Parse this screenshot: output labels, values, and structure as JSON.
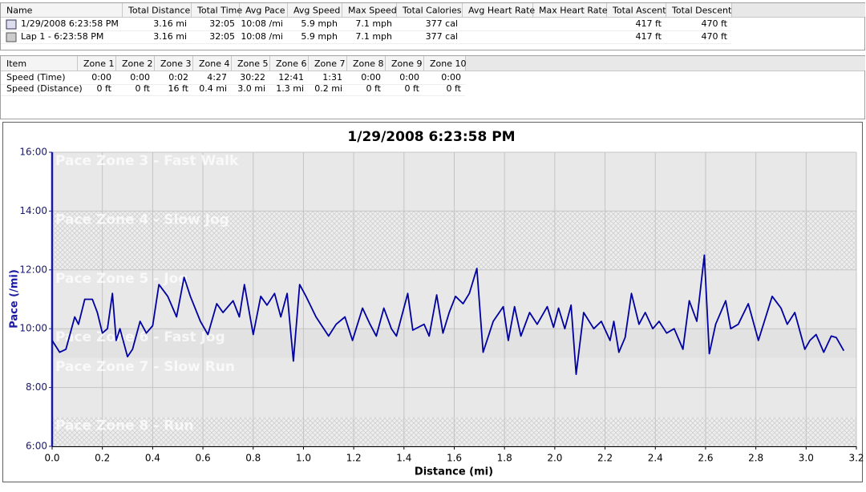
{
  "summary_table": {
    "columns": [
      "Name",
      "Total Distance",
      "Total Time",
      "Avg Pace",
      "Avg Speed",
      "Max Speed",
      "Total Calories",
      "Avg Heart Rate",
      "Max Heart Rate",
      "Total Ascent",
      "Total Descent"
    ],
    "rows": [
      [
        "1/29/2008 6:23:58 PM",
        "3.16 mi",
        "32:05",
        "10:08 /mi",
        "5.9 mph",
        "7.1 mph",
        "377 cal",
        "",
        "",
        "417 ft",
        "470 ft"
      ],
      [
        "Lap 1 - 6:23:58 PM",
        "3.16 mi",
        "32:05",
        "10:08 /mi",
        "5.9 mph",
        "7.1 mph",
        "377 cal",
        "",
        "",
        "417 ft",
        "470 ft"
      ]
    ]
  },
  "zone_table": {
    "columns": [
      "Item",
      "Zone 1",
      "Zone 2",
      "Zone 3",
      "Zone 4",
      "Zone 5",
      "Zone 6",
      "Zone 7",
      "Zone 8",
      "Zone 9",
      "Zone 10"
    ],
    "rows": [
      [
        "Speed (Time)",
        "0:00",
        "0:00",
        "0:02",
        "4:27",
        "30:22",
        "12:41",
        "1:31",
        "0:00",
        "0:00",
        "0:00"
      ],
      [
        "Speed (Distance)",
        "0 ft",
        "0 ft",
        "16 ft",
        "0.4 mi",
        "3.0 mi",
        "1.3 mi",
        "0.2 mi",
        "0 ft",
        "0 ft",
        "0 ft"
      ]
    ]
  },
  "chart_data": {
    "type": "line",
    "title": "1/29/2008 6:23:58 PM",
    "x_label": "Distance (mi)",
    "y_label": "Pace (/mi)",
    "xlim": [
      0,
      3.2
    ],
    "xticks": [
      {
        "value": 0,
        "label": "0.0"
      },
      0.2,
      0.4,
      0.6,
      0.8,
      {
        "value": 1,
        "label": "1.0"
      },
      1.2,
      1.4,
      1.6,
      1.8,
      {
        "value": 2,
        "label": "2.0"
      },
      2.2,
      2.4,
      2.6,
      2.8,
      {
        "value": 3,
        "label": "3.0"
      },
      3.2
    ],
    "ylim": [
      6,
      16
    ],
    "yticks": [
      {
        "value": 6,
        "label": "6:00"
      },
      {
        "value": 8,
        "label": "8:00"
      },
      {
        "value": 10,
        "label": "10:00"
      },
      {
        "value": 12,
        "label": "12:00"
      },
      {
        "value": 14,
        "label": "14:00"
      },
      {
        "value": 16,
        "label": "16:00"
      }
    ],
    "grid": true,
    "zones": [
      {
        "label": "Pace Zone 3 - Fast Walk",
        "low": 14,
        "high": 16,
        "hatched": false
      },
      {
        "label": "Pace Zone 4 - Slow Jog",
        "low": 12,
        "high": 14,
        "hatched": true
      },
      {
        "label": "Pace Zone 5 - Jog",
        "low": 10,
        "high": 12,
        "hatched": false
      },
      {
        "label": "Pace Zone 6 - Fast Jog",
        "low": 9,
        "high": 10,
        "hatched": false
      },
      {
        "label": "Pace Zone 7 - Slow Run",
        "low": 7,
        "high": 9,
        "hatched": false
      },
      {
        "label": "Pace Zone 8 - Run",
        "low": 6,
        "high": 7,
        "hatched": true
      }
    ],
    "x": [
      0,
      0.03,
      0.055,
      0.09,
      0.105,
      0.13,
      0.16,
      0.18,
      0.2,
      0.22,
      0.24,
      0.255,
      0.27,
      0.3,
      0.32,
      0.35,
      0.375,
      0.4,
      0.425,
      0.46,
      0.495,
      0.525,
      0.55,
      0.59,
      0.62,
      0.655,
      0.68,
      0.72,
      0.745,
      0.765,
      0.8,
      0.83,
      0.855,
      0.885,
      0.91,
      0.935,
      0.96,
      0.985,
      1.01,
      1.05,
      1.1,
      1.13,
      1.165,
      1.195,
      1.235,
      1.265,
      1.29,
      1.32,
      1.35,
      1.37,
      1.415,
      1.435,
      1.48,
      1.5,
      1.53,
      1.555,
      1.58,
      1.605,
      1.635,
      1.66,
      1.69,
      1.715,
      1.755,
      1.795,
      1.815,
      1.84,
      1.865,
      1.9,
      1.93,
      1.97,
      1.995,
      2.015,
      2.04,
      2.065,
      2.085,
      2.115,
      2.155,
      2.185,
      2.22,
      2.235,
      2.255,
      2.28,
      2.305,
      2.335,
      2.36,
      2.39,
      2.415,
      2.445,
      2.475,
      2.51,
      2.535,
      2.565,
      2.595,
      2.615,
      2.64,
      2.68,
      2.7,
      2.73,
      2.77,
      2.81,
      2.865,
      2.9,
      2.925,
      2.955,
      2.995,
      3.015,
      3.04,
      3.07,
      3.1,
      3.12,
      3.15
    ],
    "series": [
      {
        "color": "#0000a0",
        "values": [
          9.6,
          9.2,
          9.3,
          10.4,
          10.15,
          11.0,
          11.0,
          10.55,
          9.85,
          10.0,
          11.2,
          9.6,
          10.0,
          9.05,
          9.3,
          10.25,
          9.85,
          10.1,
          11.5,
          11.1,
          10.4,
          11.75,
          11.1,
          10.25,
          9.8,
          10.85,
          10.55,
          10.95,
          10.4,
          11.5,
          9.8,
          11.1,
          10.8,
          11.2,
          10.4,
          11.2,
          8.9,
          11.5,
          11.1,
          10.4,
          9.75,
          10.15,
          10.4,
          9.6,
          10.7,
          10.15,
          9.75,
          10.7,
          10.0,
          9.75,
          11.2,
          9.95,
          10.15,
          9.75,
          11.15,
          9.85,
          10.55,
          11.1,
          10.85,
          11.2,
          12.05,
          9.2,
          10.25,
          10.75,
          9.6,
          10.75,
          9.75,
          10.55,
          10.15,
          10.75,
          10.05,
          10.7,
          10.0,
          10.8,
          8.45,
          10.55,
          10.0,
          10.25,
          9.6,
          10.25,
          9.2,
          9.7,
          11.2,
          10.15,
          10.55,
          10.0,
          10.25,
          9.85,
          10.0,
          9.3,
          10.95,
          10.25,
          12.5,
          9.15,
          10.15,
          10.95,
          10.0,
          10.15,
          10.85,
          9.6,
          11.1,
          10.7,
          10.15,
          10.55,
          9.3,
          9.6,
          9.8,
          9.2,
          9.75,
          9.7,
          9.25
        ]
      }
    ]
  }
}
